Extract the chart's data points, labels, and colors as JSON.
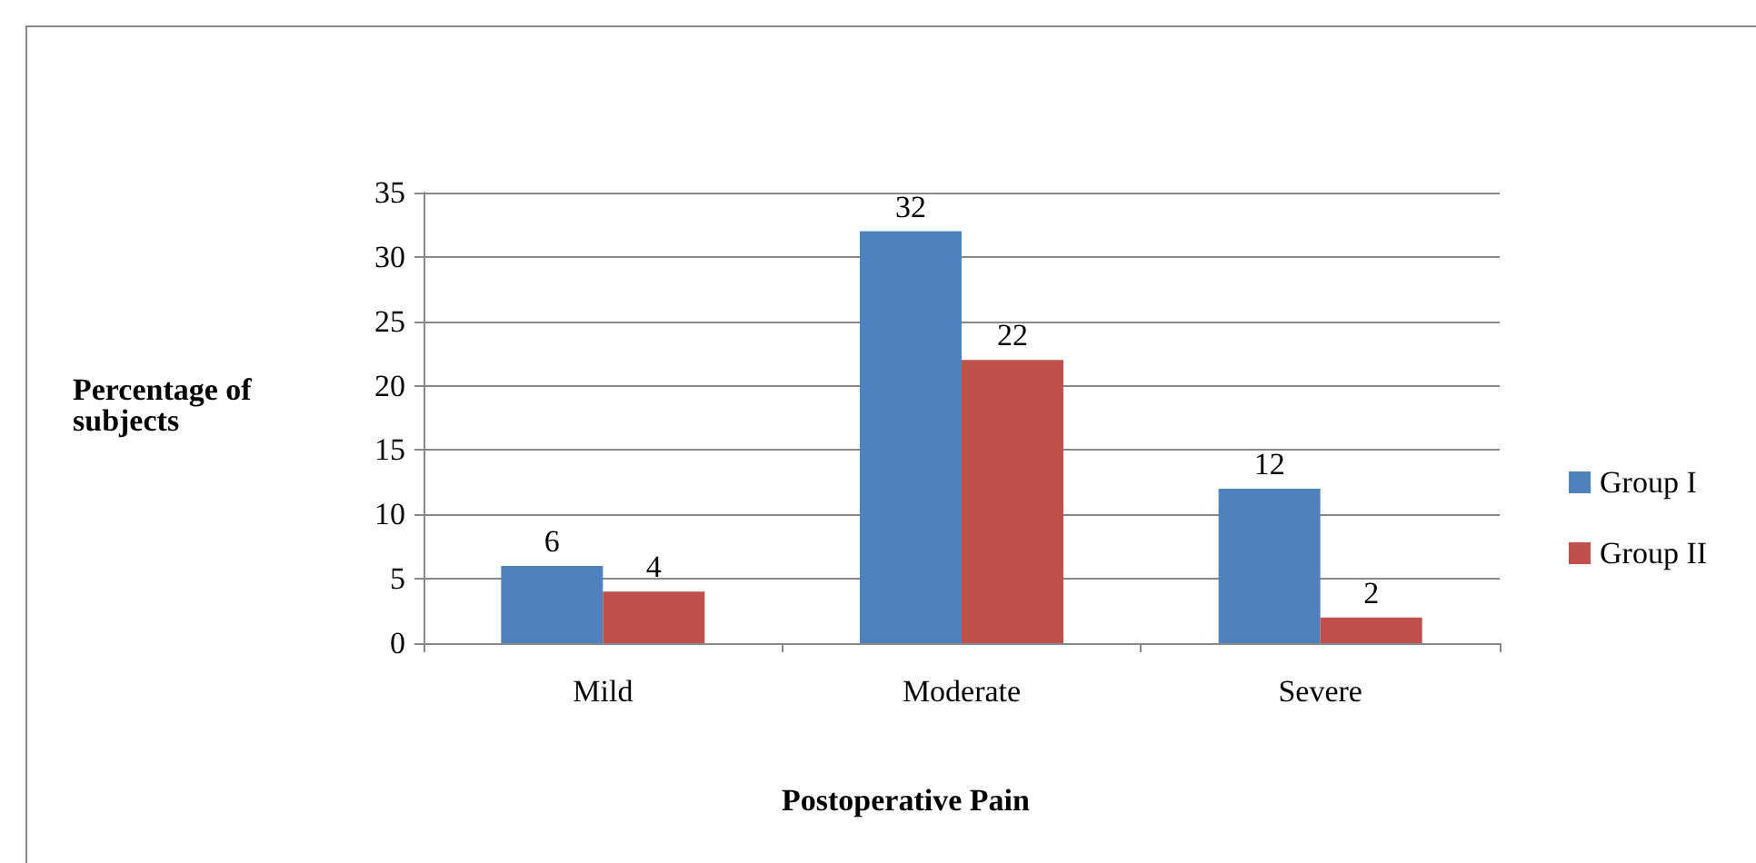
{
  "chart_data": {
    "type": "bar",
    "xlabel": "Postoperative Pain",
    "ylabel": "Percentage of subjects",
    "categories": [
      "Mild",
      "Moderate",
      "Severe"
    ],
    "series": [
      {
        "name": "Group I",
        "color": "#4f81bd",
        "values": [
          6,
          32,
          12
        ]
      },
      {
        "name": "Group II",
        "color": "#c0504d",
        "values": [
          4,
          22,
          2
        ]
      }
    ],
    "ylim": [
      0,
      35
    ],
    "yticks": [
      0,
      5,
      10,
      15,
      20,
      25,
      30,
      35
    ],
    "grid": "y",
    "legend": "right",
    "data_labels": true
  }
}
